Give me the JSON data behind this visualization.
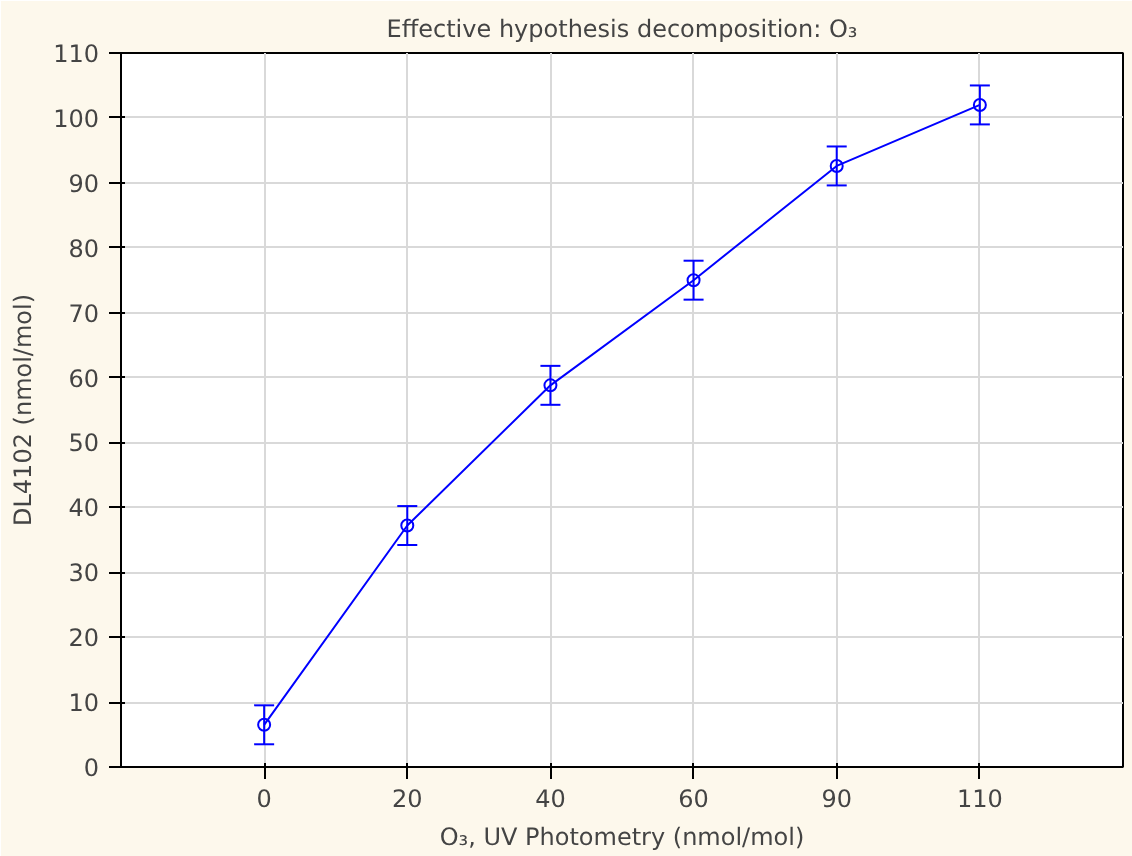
{
  "chart_data": {
    "type": "line",
    "title": "Effective hypothesis decomposition: O₃",
    "xlabel": "O₃, UV Photometry (nmol/mol)",
    "ylabel": "DL4102 (nmol/mol)",
    "categories": [
      "0",
      "20",
      "40",
      "60",
      "90",
      "110"
    ],
    "series": [
      {
        "color": "#0000ff",
        "values": [
          6.5,
          37.2,
          58.8,
          75,
          92.6,
          102
        ],
        "errors": [
          3,
          3,
          3,
          3,
          3,
          3
        ]
      }
    ],
    "ylim": [
      0,
      110
    ],
    "yticks": [
      0,
      10,
      20,
      30,
      40,
      50,
      60,
      70,
      80,
      90,
      100,
      110
    ],
    "grid": true,
    "marker": "circle",
    "line_style": "solid"
  }
}
